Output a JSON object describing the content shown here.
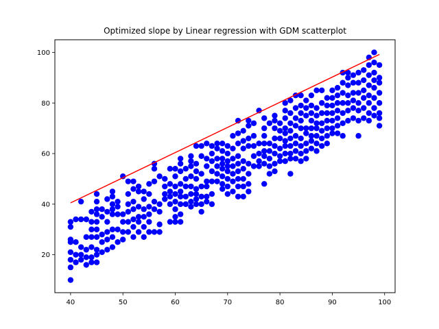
{
  "chart_data": {
    "type": "scatter",
    "title": "Optimized slope by Linear regression with GDM scatterplot",
    "xlabel": "",
    "ylabel": "",
    "xlim": [
      37,
      102
    ],
    "ylim": [
      5,
      105
    ],
    "x_ticks": [
      40,
      50,
      60,
      70,
      80,
      90,
      100
    ],
    "y_ticks": [
      20,
      40,
      60,
      80,
      100
    ],
    "grid": false,
    "colors": {
      "points": "#0000ff",
      "line": "#ff0000"
    },
    "regression_line": {
      "x": [
        40,
        99
      ],
      "y": [
        40.5,
        99.2
      ]
    },
    "points": [
      [
        40,
        10
      ],
      [
        40,
        15
      ],
      [
        40,
        18
      ],
      [
        40,
        21
      ],
      [
        40,
        25
      ],
      [
        40,
        26
      ],
      [
        40,
        31
      ],
      [
        40,
        33
      ],
      [
        41,
        17
      ],
      [
        41,
        20
      ],
      [
        41,
        25
      ],
      [
        41,
        34
      ],
      [
        42,
        18
      ],
      [
        42,
        20
      ],
      [
        42,
        23
      ],
      [
        42,
        34
      ],
      [
        42,
        41
      ],
      [
        43,
        16
      ],
      [
        43,
        19
      ],
      [
        43,
        22
      ],
      [
        43,
        27
      ],
      [
        43,
        34
      ],
      [
        44,
        17
      ],
      [
        44,
        19
      ],
      [
        44,
        23
      ],
      [
        44,
        27
      ],
      [
        44,
        30
      ],
      [
        44,
        33
      ],
      [
        44,
        37
      ],
      [
        45,
        17
      ],
      [
        45,
        20
      ],
      [
        45,
        22
      ],
      [
        45,
        27
      ],
      [
        45,
        30
      ],
      [
        45,
        33
      ],
      [
        45,
        36
      ],
      [
        45,
        38
      ],
      [
        45,
        41
      ],
      [
        45,
        44
      ],
      [
        46,
        21
      ],
      [
        46,
        25
      ],
      [
        46,
        28
      ],
      [
        46,
        35
      ],
      [
        46,
        38
      ],
      [
        47,
        22
      ],
      [
        47,
        26
      ],
      [
        47,
        29
      ],
      [
        47,
        33
      ],
      [
        47,
        37
      ],
      [
        47,
        42
      ],
      [
        48,
        23
      ],
      [
        48,
        27
      ],
      [
        48,
        30
      ],
      [
        48,
        36
      ],
      [
        48,
        38
      ],
      [
        48,
        40
      ],
      [
        48,
        43
      ],
      [
        48,
        45
      ],
      [
        49,
        25
      ],
      [
        49,
        30
      ],
      [
        49,
        36
      ],
      [
        49,
        39
      ],
      [
        49,
        41
      ],
      [
        50,
        26
      ],
      [
        50,
        29
      ],
      [
        50,
        33
      ],
      [
        50,
        36
      ],
      [
        50,
        51
      ],
      [
        51,
        29
      ],
      [
        51,
        33
      ],
      [
        51,
        37
      ],
      [
        51,
        40
      ],
      [
        51,
        44
      ],
      [
        51,
        49
      ],
      [
        52,
        27
      ],
      [
        52,
        31
      ],
      [
        52,
        34
      ],
      [
        52,
        38
      ],
      [
        52,
        41
      ],
      [
        52,
        46
      ],
      [
        52,
        49
      ],
      [
        53,
        29
      ],
      [
        53,
        33
      ],
      [
        53,
        35
      ],
      [
        53,
        39
      ],
      [
        53,
        45
      ],
      [
        53,
        47
      ],
      [
        54,
        27
      ],
      [
        54,
        31
      ],
      [
        54,
        35
      ],
      [
        54,
        38
      ],
      [
        54,
        42
      ],
      [
        54,
        45
      ],
      [
        55,
        29
      ],
      [
        55,
        33
      ],
      [
        55,
        36
      ],
      [
        55,
        39
      ],
      [
        55,
        44
      ],
      [
        55,
        48
      ],
      [
        56,
        29
      ],
      [
        56,
        38
      ],
      [
        56,
        41
      ],
      [
        56,
        49
      ],
      [
        56,
        54
      ],
      [
        56,
        56
      ],
      [
        57,
        29
      ],
      [
        57,
        32
      ],
      [
        57,
        37
      ],
      [
        57,
        40
      ],
      [
        57,
        51
      ],
      [
        58,
        42
      ],
      [
        58,
        44
      ],
      [
        58,
        47
      ],
      [
        58,
        50
      ],
      [
        59,
        33
      ],
      [
        59,
        40
      ],
      [
        59,
        43
      ],
      [
        59,
        45
      ],
      [
        59,
        54
      ],
      [
        59,
        48
      ],
      [
        60,
        33
      ],
      [
        60,
        35
      ],
      [
        60,
        38
      ],
      [
        60,
        41
      ],
      [
        60,
        44
      ],
      [
        60,
        47
      ],
      [
        60,
        51
      ],
      [
        60,
        54
      ],
      [
        61,
        33
      ],
      [
        61,
        36
      ],
      [
        61,
        40
      ],
      [
        61,
        43
      ],
      [
        61,
        45
      ],
      [
        61,
        48
      ],
      [
        61,
        53
      ],
      [
        61,
        56
      ],
      [
        61,
        58
      ],
      [
        62,
        40
      ],
      [
        62,
        43
      ],
      [
        62,
        47
      ],
      [
        62,
        50
      ],
      [
        62,
        54
      ],
      [
        63,
        39
      ],
      [
        63,
        41
      ],
      [
        63,
        44
      ],
      [
        63,
        47
      ],
      [
        63,
        51
      ],
      [
        63,
        55
      ],
      [
        63,
        57
      ],
      [
        63,
        59
      ],
      [
        64,
        40
      ],
      [
        64,
        42
      ],
      [
        64,
        44
      ],
      [
        64,
        46
      ],
      [
        64,
        50
      ],
      [
        64,
        53
      ],
      [
        64,
        56
      ],
      [
        64,
        63
      ],
      [
        65,
        37
      ],
      [
        65,
        40
      ],
      [
        65,
        43
      ],
      [
        65,
        47
      ],
      [
        65,
        52
      ],
      [
        65,
        59
      ],
      [
        65,
        63
      ],
      [
        66,
        41
      ],
      [
        66,
        43
      ],
      [
        66,
        47
      ],
      [
        66,
        49
      ],
      [
        66,
        55
      ],
      [
        66,
        58
      ],
      [
        66,
        64
      ],
      [
        67,
        40
      ],
      [
        67,
        44
      ],
      [
        67,
        49
      ],
      [
        67,
        53
      ],
      [
        67,
        57
      ],
      [
        67,
        60
      ],
      [
        67,
        63
      ],
      [
        68,
        49
      ],
      [
        68,
        52
      ],
      [
        68,
        55
      ],
      [
        68,
        58
      ],
      [
        68,
        62
      ],
      [
        68,
        64
      ],
      [
        69,
        46
      ],
      [
        69,
        48
      ],
      [
        69,
        51
      ],
      [
        69,
        54
      ],
      [
        69,
        56
      ],
      [
        69,
        58
      ],
      [
        69,
        61
      ],
      [
        69,
        64
      ],
      [
        70,
        44
      ],
      [
        70,
        47
      ],
      [
        70,
        50
      ],
      [
        70,
        53
      ],
      [
        70,
        55
      ],
      [
        70,
        57
      ],
      [
        70,
        60
      ],
      [
        70,
        63
      ],
      [
        71,
        45
      ],
      [
        71,
        49
      ],
      [
        71,
        52
      ],
      [
        71,
        55
      ],
      [
        71,
        58
      ],
      [
        71,
        62
      ],
      [
        71,
        67
      ],
      [
        72,
        43
      ],
      [
        72,
        47
      ],
      [
        72,
        50
      ],
      [
        72,
        53
      ],
      [
        72,
        56
      ],
      [
        72,
        59
      ],
      [
        72,
        64
      ],
      [
        72,
        68
      ],
      [
        72,
        73
      ],
      [
        73,
        43
      ],
      [
        73,
        47
      ],
      [
        73,
        50
      ],
      [
        73,
        54
      ],
      [
        73,
        57
      ],
      [
        73,
        62
      ],
      [
        73,
        65
      ],
      [
        73,
        69
      ],
      [
        74,
        45
      ],
      [
        74,
        48
      ],
      [
        74,
        52
      ],
      [
        74,
        56
      ],
      [
        74,
        63
      ],
      [
        74,
        66
      ],
      [
        74,
        71
      ],
      [
        74,
        73
      ],
      [
        75,
        55
      ],
      [
        75,
        59
      ],
      [
        75,
        63
      ],
      [
        75,
        67
      ],
      [
        75,
        72
      ],
      [
        76,
        55
      ],
      [
        76,
        57
      ],
      [
        76,
        60
      ],
      [
        76,
        64
      ],
      [
        76,
        77
      ],
      [
        77,
        48
      ],
      [
        77,
        56
      ],
      [
        77,
        59
      ],
      [
        77,
        61
      ],
      [
        77,
        64
      ],
      [
        77,
        67
      ],
      [
        77,
        70
      ],
      [
        77,
        74
      ],
      [
        78,
        52
      ],
      [
        78,
        55
      ],
      [
        78,
        58
      ],
      [
        78,
        61
      ],
      [
        78,
        64
      ],
      [
        78,
        72
      ],
      [
        79,
        53
      ],
      [
        79,
        56
      ],
      [
        79,
        60
      ],
      [
        79,
        63
      ],
      [
        79,
        66
      ],
      [
        79,
        70
      ],
      [
        79,
        73
      ],
      [
        79,
        75
      ],
      [
        80,
        57
      ],
      [
        80,
        59
      ],
      [
        80,
        62
      ],
      [
        80,
        66
      ],
      [
        80,
        69
      ],
      [
        80,
        72
      ],
      [
        81,
        57
      ],
      [
        81,
        60
      ],
      [
        81,
        63
      ],
      [
        81,
        65
      ],
      [
        81,
        68
      ],
      [
        81,
        70
      ],
      [
        81,
        74
      ],
      [
        81,
        77
      ],
      [
        81,
        80
      ],
      [
        82,
        52
      ],
      [
        82,
        58
      ],
      [
        82,
        60
      ],
      [
        82,
        63
      ],
      [
        82,
        66
      ],
      [
        82,
        69
      ],
      [
        82,
        72
      ],
      [
        82,
        76
      ],
      [
        82,
        81
      ],
      [
        83,
        58
      ],
      [
        83,
        61
      ],
      [
        83,
        64
      ],
      [
        83,
        67
      ],
      [
        83,
        71
      ],
      [
        83,
        74
      ],
      [
        83,
        78
      ],
      [
        83,
        83
      ],
      [
        84,
        57
      ],
      [
        84,
        60
      ],
      [
        84,
        63
      ],
      [
        84,
        66
      ],
      [
        84,
        70
      ],
      [
        84,
        73
      ],
      [
        84,
        76
      ],
      [
        84,
        79
      ],
      [
        84,
        83
      ],
      [
        85,
        58
      ],
      [
        85,
        61
      ],
      [
        85,
        64
      ],
      [
        85,
        68
      ],
      [
        85,
        70
      ],
      [
        85,
        75
      ],
      [
        85,
        78
      ],
      [
        85,
        81
      ],
      [
        86,
        62
      ],
      [
        86,
        65
      ],
      [
        86,
        67
      ],
      [
        86,
        70
      ],
      [
        86,
        73
      ],
      [
        86,
        76
      ],
      [
        86,
        79
      ],
      [
        86,
        83
      ],
      [
        87,
        61
      ],
      [
        87,
        64
      ],
      [
        87,
        67
      ],
      [
        87,
        70
      ],
      [
        87,
        72
      ],
      [
        87,
        75
      ],
      [
        87,
        78
      ],
      [
        87,
        85
      ],
      [
        88,
        63
      ],
      [
        88,
        66
      ],
      [
        88,
        69
      ],
      [
        88,
        72
      ],
      [
        88,
        76
      ],
      [
        88,
        80
      ],
      [
        88,
        85
      ],
      [
        89,
        64
      ],
      [
        89,
        67
      ],
      [
        89,
        70
      ],
      [
        89,
        73
      ],
      [
        89,
        76
      ],
      [
        89,
        79
      ],
      [
        89,
        82
      ],
      [
        90,
        68
      ],
      [
        90,
        70
      ],
      [
        90,
        73
      ],
      [
        90,
        76
      ],
      [
        90,
        79
      ],
      [
        90,
        82
      ],
      [
        90,
        85
      ],
      [
        91,
        68
      ],
      [
        91,
        71
      ],
      [
        91,
        74
      ],
      [
        91,
        77
      ],
      [
        91,
        80
      ],
      [
        91,
        83
      ],
      [
        91,
        86
      ],
      [
        92,
        67
      ],
      [
        92,
        72
      ],
      [
        92,
        76
      ],
      [
        92,
        80
      ],
      [
        92,
        84
      ],
      [
        92,
        88
      ],
      [
        92,
        92
      ],
      [
        93,
        73
      ],
      [
        93,
        77
      ],
      [
        93,
        80
      ],
      [
        93,
        83
      ],
      [
        93,
        87
      ],
      [
        93,
        90
      ],
      [
        93,
        92
      ],
      [
        94,
        74
      ],
      [
        94,
        78
      ],
      [
        94,
        81
      ],
      [
        94,
        84
      ],
      [
        94,
        88
      ],
      [
        94,
        91
      ],
      [
        95,
        67
      ],
      [
        95,
        73
      ],
      [
        95,
        77
      ],
      [
        95,
        80
      ],
      [
        95,
        84
      ],
      [
        95,
        88
      ],
      [
        95,
        92
      ],
      [
        96,
        74
      ],
      [
        96,
        78
      ],
      [
        96,
        82
      ],
      [
        96,
        85
      ],
      [
        96,
        89
      ],
      [
        96,
        93
      ],
      [
        97,
        73
      ],
      [
        97,
        76
      ],
      [
        97,
        80
      ],
      [
        97,
        83
      ],
      [
        97,
        87
      ],
      [
        97,
        91
      ],
      [
        97,
        95
      ],
      [
        97,
        98
      ],
      [
        98,
        75
      ],
      [
        98,
        78
      ],
      [
        98,
        82
      ],
      [
        98,
        86
      ],
      [
        98,
        89
      ],
      [
        98,
        92
      ],
      [
        98,
        96
      ],
      [
        98,
        100
      ],
      [
        99,
        71
      ],
      [
        99,
        74
      ],
      [
        99,
        76
      ],
      [
        99,
        80
      ],
      [
        99,
        84
      ],
      [
        99,
        88
      ],
      [
        99,
        90
      ],
      [
        99,
        95
      ]
    ]
  }
}
